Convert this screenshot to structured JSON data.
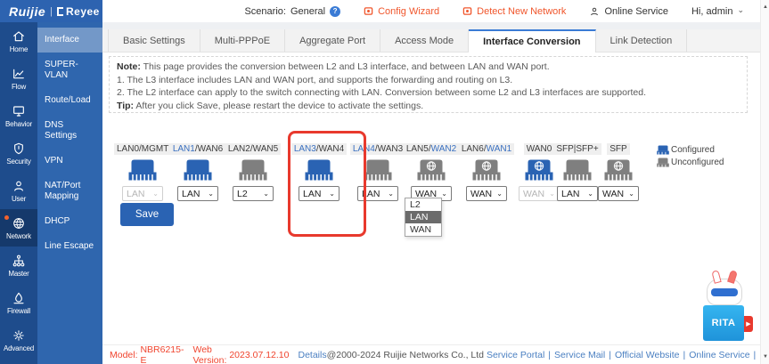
{
  "colors": {
    "brand_blue": "#2d63b0",
    "sidebar_dark": "#1e4c8c",
    "accent_orange": "#f0562c",
    "alert_red": "#e8392d",
    "link_blue": "#4a7fc1",
    "port_configured_blue": "#2a63b3",
    "port_unconfigured_gray": "#7f7f7f"
  },
  "header": {
    "logo": {
      "brand": "Ruijie",
      "divider": "|",
      "sub": "Reyee"
    },
    "scenario_label": "Scenario:",
    "scenario_value": "General",
    "help_glyph": "?",
    "config_wizard": "Config Wizard",
    "detect_new_network": "Detect New Network",
    "online_service": "Online Service",
    "greeting": "Hi, admin"
  },
  "nav": {
    "active": "Network",
    "items": [
      {
        "label": "Home",
        "icon": "home-icon"
      },
      {
        "label": "Flow",
        "icon": "flow-chart-icon"
      },
      {
        "label": "Behavior",
        "icon": "behavior-monitor-icon"
      },
      {
        "label": "Security",
        "icon": "security-shield-icon"
      },
      {
        "label": "User",
        "icon": "user-icon"
      },
      {
        "label": "Network",
        "icon": "network-globe-icon"
      },
      {
        "label": "Master",
        "icon": "master-tree-icon"
      },
      {
        "label": "Firewall",
        "icon": "firewall-flame-icon"
      },
      {
        "label": "Advanced",
        "icon": "advanced-gear-icon"
      }
    ]
  },
  "submenu": {
    "active": "Interface",
    "items": [
      "Interface",
      "SUPER-VLAN",
      "Route/Load",
      "DNS Settings",
      "VPN",
      "NAT/Port Mapping",
      "DHCP",
      "Line Escape"
    ]
  },
  "tabs": {
    "active": "Interface Conversion",
    "items": [
      "Basic Settings",
      "Multi-PPPoE",
      "Aggregate Port",
      "Access Mode",
      "Interface Conversion",
      "Link Detection"
    ]
  },
  "note": {
    "note_label": "Note:",
    "note_text": "This page provides the conversion between L2 and L3 interface, and between LAN and WAN port.",
    "line1": "1. The L3 interface includes LAN and WAN port, and supports the forwarding and routing on L3.",
    "line2": "2. The L2 interface can apply to the switch connecting with LAN. Conversion between some L2 and L3 interfaces are supported.",
    "tip_label": "Tip:",
    "tip_text": "After you click Save, please restart the device to activate the settings."
  },
  "ports": {
    "items": [
      {
        "label1": "LAN0/MGMT",
        "label2": "",
        "blue_part": 0,
        "configured": true,
        "globe": false,
        "select": {
          "value": "LAN",
          "disabled": true,
          "open": false
        }
      },
      {
        "label1": "LAN1",
        "label2": "/WAN6",
        "blue_part": 1,
        "configured": true,
        "globe": false,
        "select": {
          "value": "LAN",
          "disabled": false,
          "open": false
        }
      },
      {
        "label1": "LAN2/WAN5",
        "label2": "",
        "blue_part": 0,
        "configured": false,
        "globe": false,
        "select": {
          "value": "L2",
          "disabled": false,
          "open": false
        }
      },
      {
        "label1": "LAN3",
        "label2": "/WAN4",
        "blue_part": 1,
        "configured": true,
        "globe": false,
        "select": {
          "value": "LAN",
          "disabled": false,
          "open": true
        },
        "highlighted": true
      },
      {
        "label1": "LAN4",
        "label2": "/WAN3",
        "blue_part": 1,
        "configured": false,
        "globe": false,
        "select": {
          "value": "LAN",
          "disabled": false,
          "open": false
        }
      },
      {
        "label1": "LAN5/",
        "label2": "WAN2",
        "blue_part": 2,
        "configured": false,
        "globe": true,
        "select": {
          "value": "WAN",
          "disabled": false,
          "open": false
        }
      },
      {
        "label1": "LAN6/",
        "label2": "WAN1",
        "blue_part": 2,
        "configured": false,
        "globe": true,
        "select": {
          "value": "WAN",
          "disabled": false,
          "open": false
        }
      },
      {
        "label1": "WAN0",
        "label2": "",
        "blue_part": 0,
        "configured": true,
        "globe": true,
        "select": {
          "value": "WAN",
          "disabled": true,
          "open": false
        }
      },
      {
        "label1": "SFP|SFP+",
        "label2": "",
        "blue_part": 0,
        "configured": false,
        "globe": false,
        "select": {
          "value": "LAN",
          "disabled": false,
          "open": false
        }
      },
      {
        "label1": "SFP",
        "label2": "",
        "blue_part": 0,
        "configured": false,
        "globe": true,
        "select": {
          "value": "WAN",
          "disabled": false,
          "open": false
        }
      }
    ],
    "dropdown_options": [
      {
        "label": "L2",
        "selected": false
      },
      {
        "label": "LAN",
        "selected": true
      },
      {
        "label": "WAN",
        "selected": false
      }
    ]
  },
  "legend": {
    "configured": "Configured",
    "unconfigured": "Unconfigured"
  },
  "save_button": "Save",
  "mascot": {
    "label": "RITA"
  },
  "footer": {
    "model_label": "Model:",
    "model_value": "NBR6215-E",
    "web_version_label": "Web Version:",
    "web_version_value": "2023.07.12.10",
    "details_link": "Details",
    "copyright": "@2000-2024 Ruijie Networks Co., Ltd",
    "links": [
      "Service Portal",
      "Service Mail",
      "Official Website",
      "Online Service"
    ],
    "separator": "|"
  }
}
